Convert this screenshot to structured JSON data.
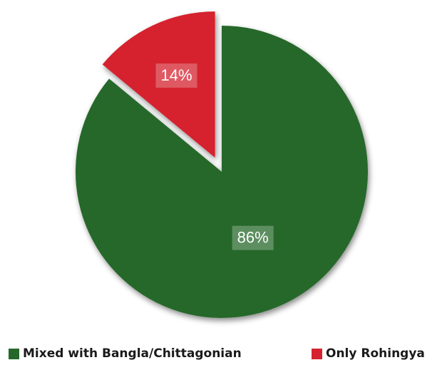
{
  "chart_data": {
    "type": "pie",
    "title": "",
    "slices": [
      {
        "label": "Mixed with Bangla/Chittagonian",
        "value": 86,
        "display": "86%",
        "color": "#26682c"
      },
      {
        "label": "Only Rohingya",
        "value": 14,
        "display": "14%",
        "color": "#d5222e"
      }
    ],
    "exploded_slice": "Only Rohingya",
    "legend_position": "bottom"
  },
  "legend": {
    "items": [
      {
        "label": "Mixed with Bangla/Chittagonian",
        "color": "#26682c"
      },
      {
        "label": "Only Rohingya",
        "color": "#d5222e"
      }
    ]
  }
}
